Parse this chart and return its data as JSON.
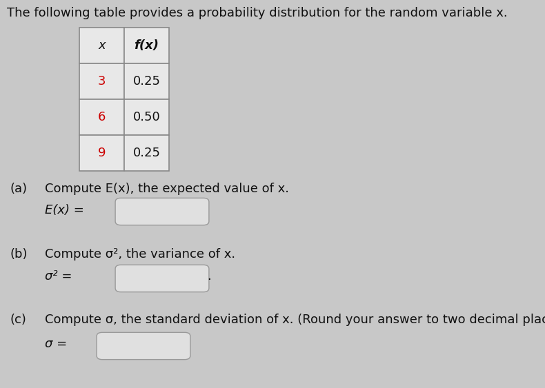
{
  "title": "The following table provides a probability distribution for the random variable x.",
  "title_fontsize": 13,
  "title_color": "#111111",
  "bg_color": "#c8c8c8",
  "table_x_values": [
    "x",
    "3",
    "6",
    "9"
  ],
  "table_fx_values": [
    "f(x)",
    "0.25",
    "0.50",
    "0.25"
  ],
  "table_data_color": "#cc0000",
  "part_a_label": "(a)",
  "part_a_text": "Compute E(x), the expected value of x.",
  "part_a_eq": "E(x) =",
  "part_b_label": "(b)",
  "part_b_text": "Compute σ², the variance of x.",
  "part_b_eq": "σ² =",
  "part_b_suffix": ".",
  "part_c_label": "(c)",
  "part_c_text": "Compute σ, the standard deviation of x. (Round your answer to two decimal places.)",
  "part_c_eq": "σ =",
  "cell_bg": "#e8e8e8",
  "cell_border": "#888888",
  "box_color": "#e0e0e0",
  "box_border_color": "#999999",
  "text_fontsize": 13,
  "eq_fontsize": 13,
  "table_fontsize": 13,
  "fig_width": 7.9,
  "fig_height": 5.63,
  "dpi": 100
}
